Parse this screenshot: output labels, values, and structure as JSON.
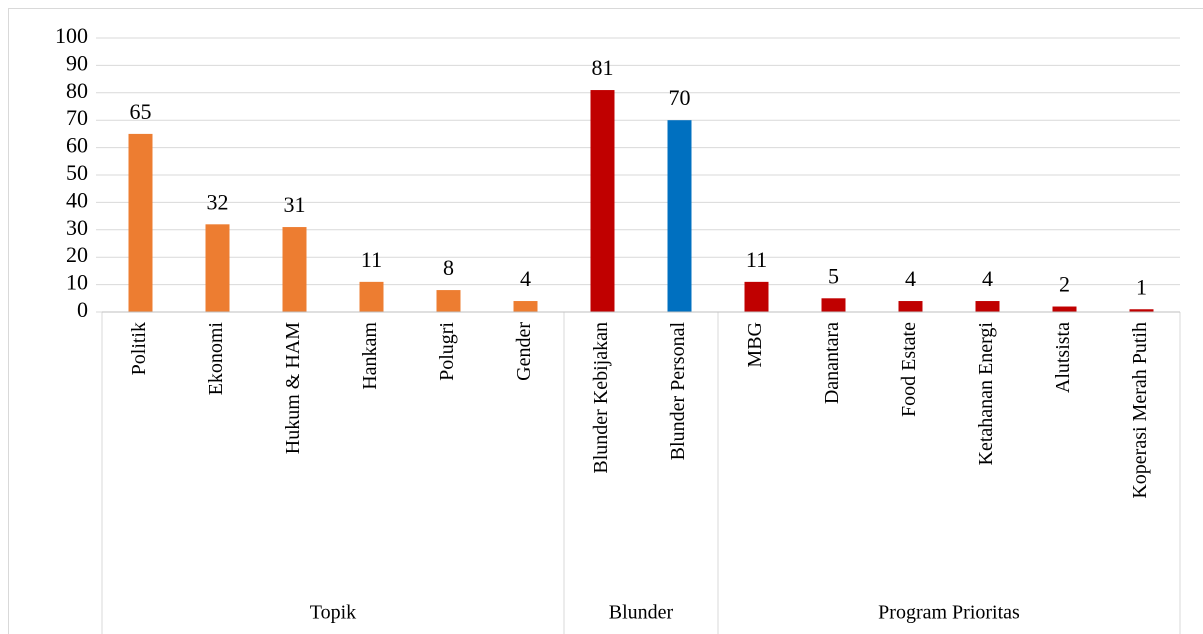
{
  "chart_data": {
    "type": "bar",
    "groups": [
      {
        "name": "Topik",
        "categories": [
          "Politik",
          "Ekonomi",
          "Hukum & HAM",
          "Hankam",
          "Polugri",
          "Gender"
        ],
        "values": [
          65,
          32,
          31,
          11,
          8,
          4
        ],
        "colors": [
          "#ED7D31",
          "#ED7D31",
          "#ED7D31",
          "#ED7D31",
          "#ED7D31",
          "#ED7D31"
        ]
      },
      {
        "name": "Blunder",
        "categories": [
          "Blunder Kebijakan",
          "Blunder Personal"
        ],
        "values": [
          81,
          70
        ],
        "colors": [
          "#C00000",
          "#0070C0"
        ]
      },
      {
        "name": "Program Prioritas",
        "categories": [
          "MBG",
          "Danantara",
          "Food Estate",
          "Ketahanan Energi",
          "Alutsista",
          "Koperasi Merah Putih"
        ],
        "values": [
          11,
          5,
          4,
          4,
          2,
          1
        ],
        "colors": [
          "#C00000",
          "#C00000",
          "#C00000",
          "#C00000",
          "#C00000",
          "#C00000"
        ]
      }
    ],
    "ylim": [
      0,
      100
    ],
    "yticks": [
      0,
      10,
      20,
      30,
      40,
      50,
      60,
      70,
      80,
      90,
      100
    ],
    "grid": true
  }
}
